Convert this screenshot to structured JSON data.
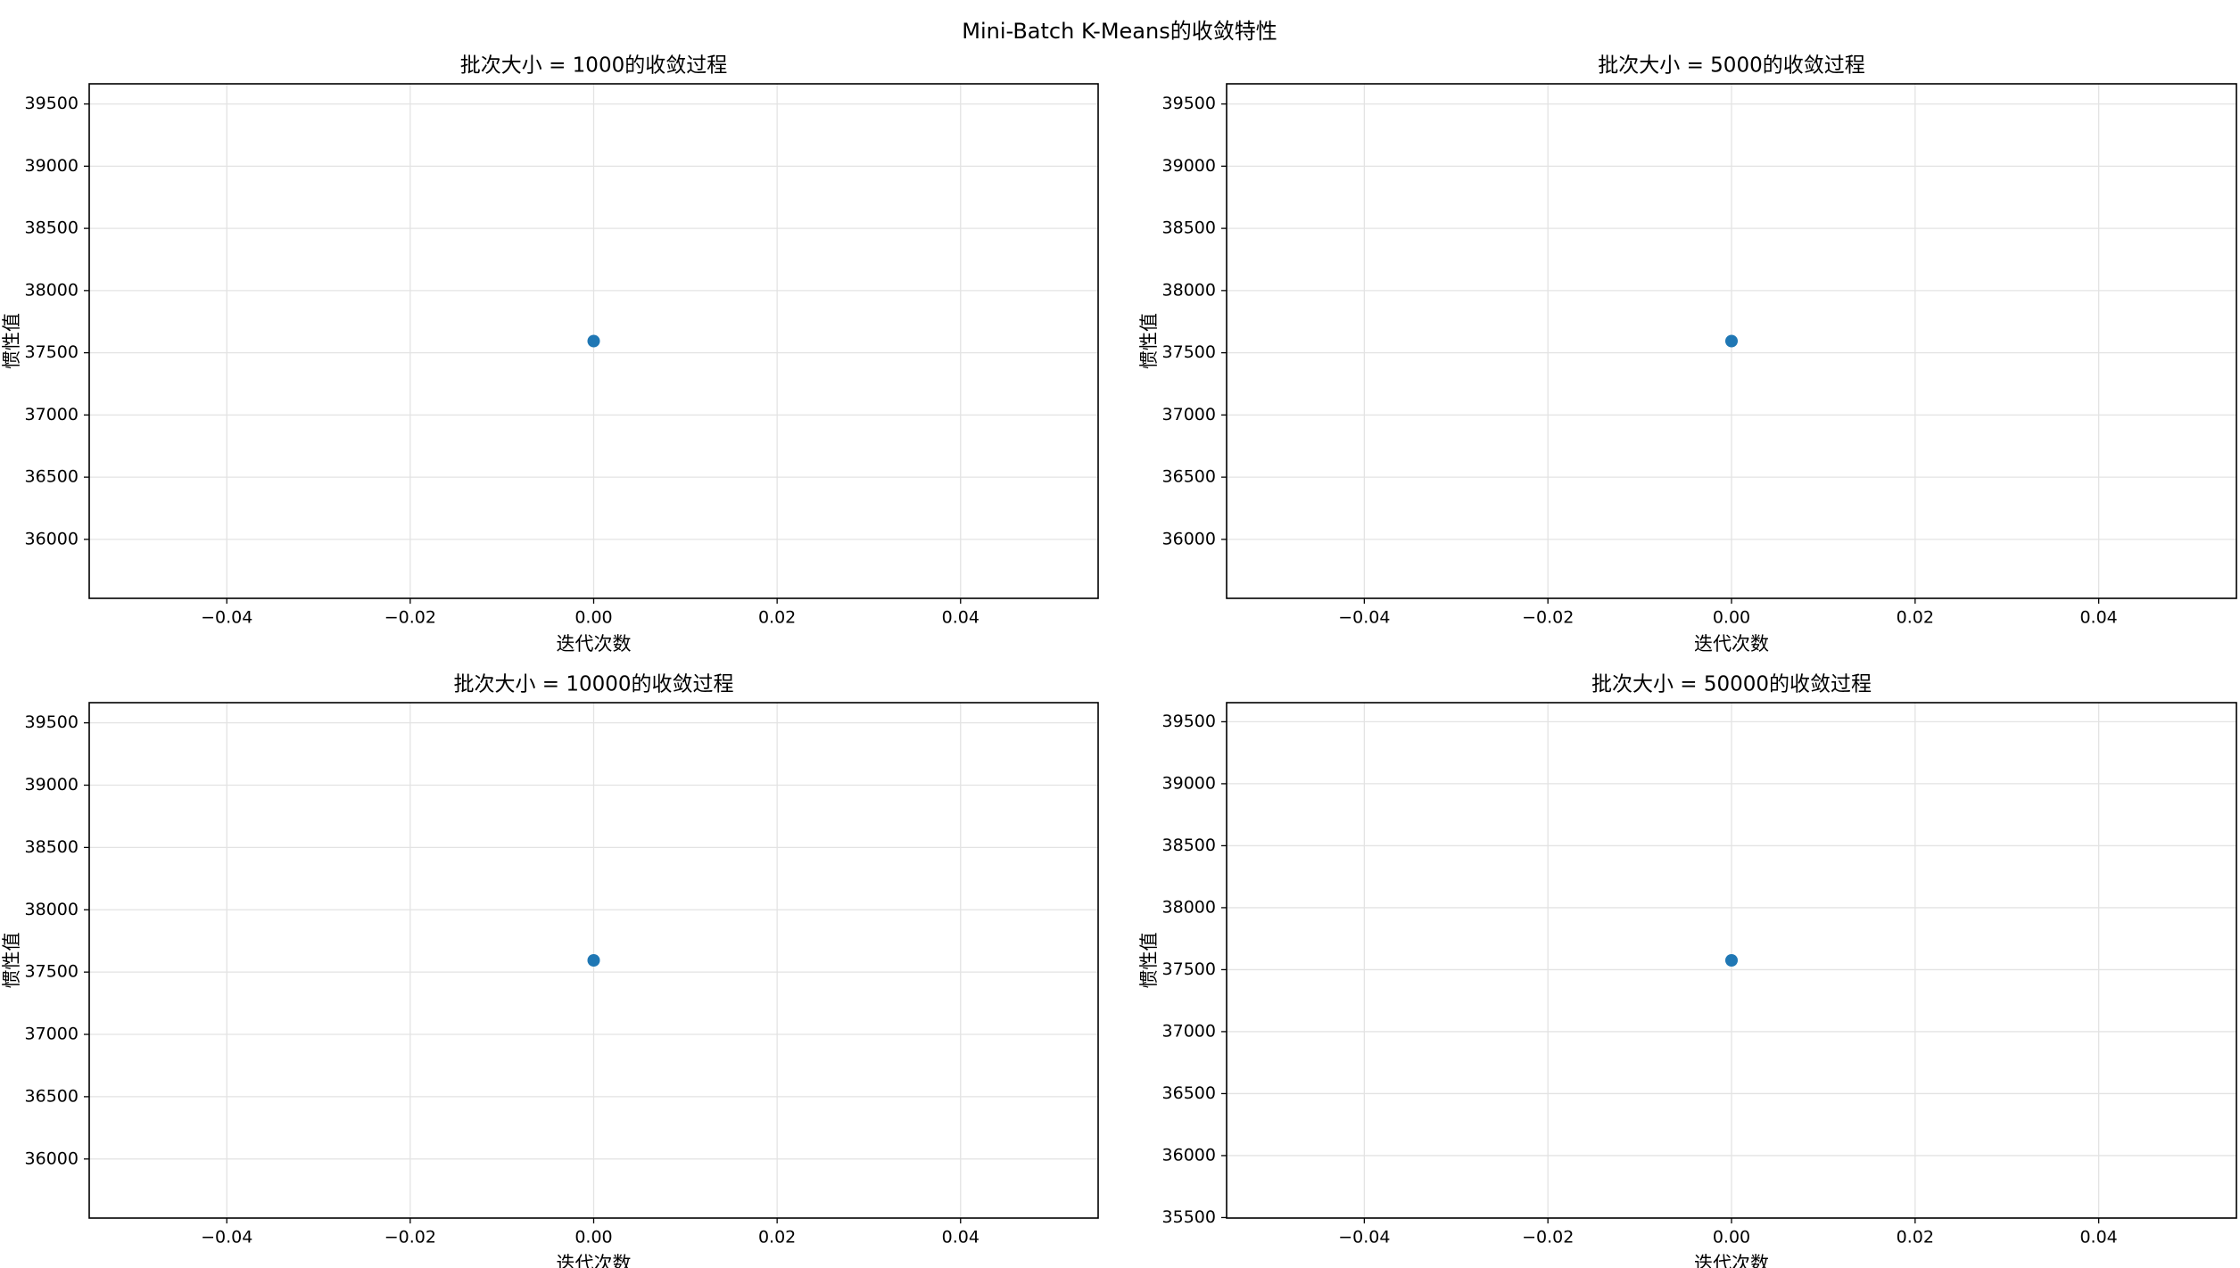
{
  "title": "Mini-Batch K-Means的收敛特性",
  "chart_data": [
    {
      "type": "line",
      "title": "批次大小 = 1000的收敛过程",
      "x_label": "迭代次数",
      "y_label": "惯性值",
      "x": [
        0
      ],
      "values": [
        37594
      ],
      "color": "#1f77b4",
      "xlim": [
        -0.055,
        0.055
      ],
      "ylim": [
        35526,
        39662
      ],
      "xticks": [
        {
          "value": -0.04,
          "label": "−0.04"
        },
        {
          "value": -0.02,
          "label": "−0.02"
        },
        {
          "value": 0,
          "label": "0.00"
        },
        0.02,
        0.04
      ],
      "yticks": [
        36000,
        36500,
        37000,
        37500,
        38000,
        38500,
        39000,
        39500
      ],
      "grid": true
    },
    {
      "type": "line",
      "title": "批次大小 = 5000的收敛过程",
      "x_label": "迭代次数",
      "y_label": "惯性值",
      "x": [
        0
      ],
      "values": [
        37594
      ],
      "color": "#1f77b4",
      "xlim": [
        -0.055,
        0.055
      ],
      "ylim": [
        35526,
        39662
      ],
      "xticks": [
        {
          "value": -0.04,
          "label": "−0.04"
        },
        {
          "value": -0.02,
          "label": "−0.02"
        },
        {
          "value": 0,
          "label": "0.00"
        },
        0.02,
        0.04
      ],
      "yticks": [
        36000,
        36500,
        37000,
        37500,
        38000,
        38500,
        39000,
        39500
      ],
      "grid": true
    },
    {
      "type": "line",
      "title": "批次大小 = 10000的收敛过程",
      "x_label": "迭代次数",
      "y_label": "惯性值",
      "x": [
        0
      ],
      "values": [
        37594
      ],
      "color": "#1f77b4",
      "xlim": [
        -0.055,
        0.055
      ],
      "ylim": [
        35526,
        39662
      ],
      "xticks": [
        {
          "value": -0.04,
          "label": "−0.04"
        },
        {
          "value": -0.02,
          "label": "−0.02"
        },
        {
          "value": 0,
          "label": "0.00"
        },
        0.02,
        0.04
      ],
      "yticks": [
        36000,
        36500,
        37000,
        37500,
        38000,
        38500,
        39000,
        39500
      ],
      "grid": true
    },
    {
      "type": "line",
      "title": "批次大小 = 50000的收敛过程",
      "x_label": "迭代次数",
      "y_label": "惯性值",
      "x": [
        0
      ],
      "values": [
        37575
      ],
      "color": "#1f77b4",
      "xlim": [
        -0.055,
        0.055
      ],
      "ylim": [
        35496,
        39654
      ],
      "xticks": [
        {
          "value": -0.04,
          "label": "−0.04"
        },
        {
          "value": -0.02,
          "label": "−0.02"
        },
        {
          "value": 0,
          "label": "0.00"
        },
        0.02,
        0.04
      ],
      "yticks": [
        35500,
        36000,
        36500,
        37000,
        37500,
        38000,
        38500,
        39000,
        39500
      ],
      "grid": true
    }
  ]
}
